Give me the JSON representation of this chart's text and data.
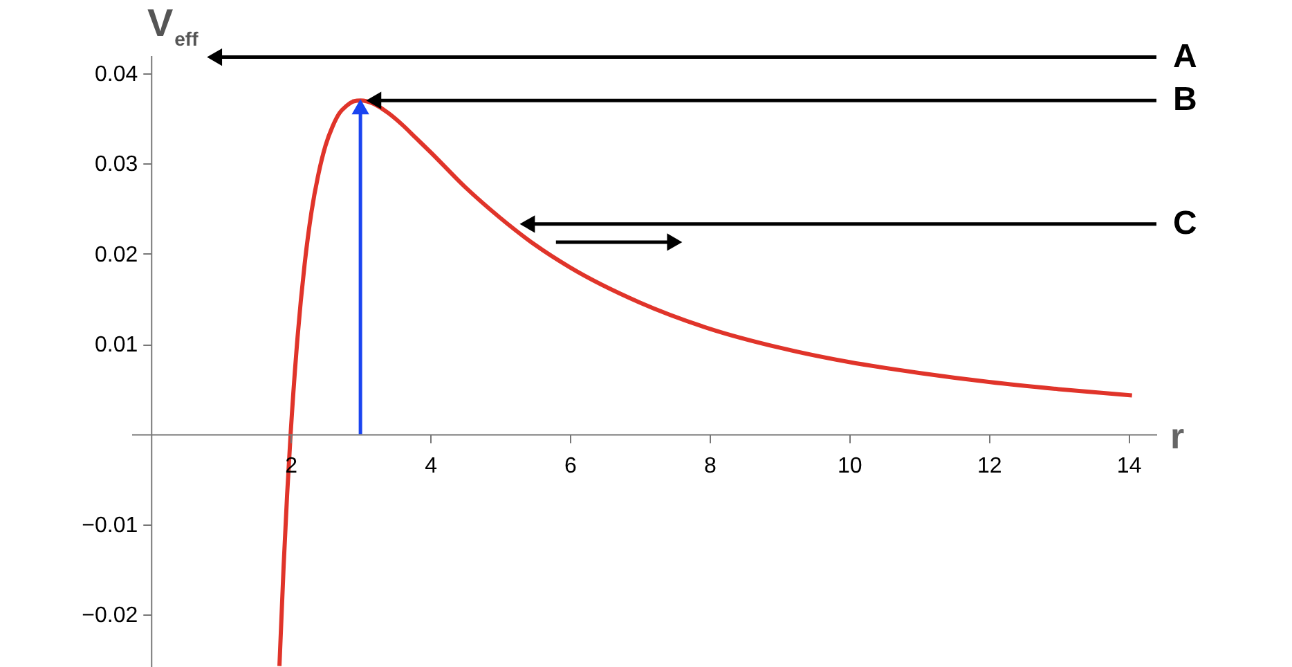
{
  "chart_data": {
    "type": "line",
    "xlabel": "r",
    "ylabel": "V$_{eff}$",
    "xlim": [
      -0.28,
      14.4
    ],
    "ylim": [
      -0.0258,
      0.042
    ],
    "xticks": [
      2,
      4,
      6,
      8,
      10,
      12,
      14
    ],
    "yticks": [
      -0.02,
      -0.01,
      0.01,
      0.02,
      0.03,
      0.04
    ],
    "grid": false,
    "series": [
      {
        "color": "#e0342a",
        "x": [
          1.84,
          1.9,
          1.95,
          2,
          2.1,
          2.2,
          2.3,
          2.4,
          2.5,
          2.6,
          2.7,
          2.8,
          2.9,
          3,
          3.2,
          3.4,
          3.6,
          3.8,
          4,
          4.5,
          5,
          5.5,
          6,
          7,
          8,
          9,
          10,
          11,
          12,
          13,
          14.05
        ],
        "values": [
          -0.0257,
          -0.0146,
          -0.0067,
          0,
          0.0108,
          0.0188,
          0.0247,
          0.0289,
          0.032,
          0.0341,
          0.0356,
          0.0364,
          0.0369,
          0.037,
          0.0366,
          0.0356,
          0.0343,
          0.0328,
          0.0313,
          0.0274,
          0.024,
          0.021,
          0.0185,
          0.0146,
          0.0117,
          0.0096,
          0.008,
          0.0068,
          0.0058,
          0.005,
          0.0043
        ]
      },
      {
        "color": "#1a44f0",
        "x": [
          3,
          3
        ],
        "values": [
          0,
          0.0363
        ],
        "marker": "triangle"
      },
      {
        "color": "#000000",
        "x": [
          5.8,
          7.5
        ],
        "values": [
          0.0213,
          0.0213
        ],
        "marker": "triangle"
      },
      {
        "name": "A",
        "color": "#000000",
        "x": [
          14.4,
          0.91
        ],
        "values": [
          0.0418,
          0.0418
        ],
        "marker": "triangle"
      },
      {
        "name": "B",
        "color": "#000000",
        "x": [
          14.4,
          3.19
        ],
        "values": [
          0.037,
          0.037
        ],
        "marker": "triangle"
      },
      {
        "name": "C",
        "color": "#000000",
        "x": [
          14.4,
          5.39
        ],
        "values": [
          0.0233,
          0.0233
        ],
        "marker": "triangle"
      }
    ]
  }
}
